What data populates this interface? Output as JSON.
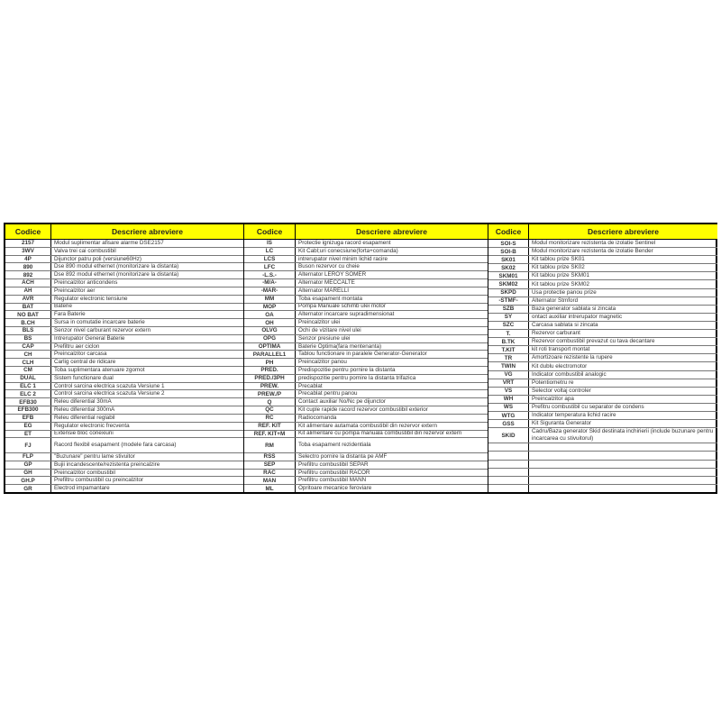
{
  "header": {
    "code": "Codice",
    "description": "Descriere abreviere"
  },
  "colors": {
    "header_bg": "#ffff00",
    "border": "#000000"
  },
  "sections": [
    {
      "rows": [
        {
          "code": "2157",
          "desc": "Modul suplimentar afisare alarme DSE2157"
        },
        {
          "code": "3WV",
          "desc": "Valva trei cai combustibil"
        },
        {
          "code": "4P",
          "desc": "Dijunctor patru poli (versiune60Hz)"
        },
        {
          "code": "890",
          "desc": "Dse 890 modul ethernet (monitorizare la distanta)"
        },
        {
          "code": "892",
          "desc": "Dse 892 modul ethernet (monitorizare la distanta)"
        },
        {
          "code": "ACH",
          "desc": "Preincalzitor anticondens"
        },
        {
          "code": "AH",
          "desc": "Preincalzitor aer"
        },
        {
          "code": "AVR",
          "desc": "Regulator electronic tensiune"
        },
        {
          "code": "BAT",
          "desc": "Baterie"
        },
        {
          "code": "NO BAT",
          "desc": "Fara Baterie"
        },
        {
          "code": "B.CH",
          "desc": "Sursa in comutatie incarcare baterie"
        },
        {
          "code": "BLS",
          "desc": "Senzor nivel carburant rezervor extern"
        },
        {
          "code": "BS",
          "desc": "Intrerupator General Baterie"
        },
        {
          "code": "CAP",
          "desc": "Prefiltru aer ciclon"
        },
        {
          "code": "CH",
          "desc": "Preincalzitor carcasa"
        },
        {
          "code": "CLH",
          "desc": "Carlig central de ridicare"
        },
        {
          "code": "CM",
          "desc": "Toba suplimentara atenuare zgomot"
        },
        {
          "code": "DUAL",
          "desc": "Sistem functionare dual"
        },
        {
          "code": "ELC 1",
          "desc": "Control sarcina electrica  scazuta Versiune 1"
        },
        {
          "code": "ELC 2",
          "desc": "Control sarcina electrica  scazuta Versiune 2"
        },
        {
          "code": "EFB30",
          "desc": "Releu diferential 30mA"
        },
        {
          "code": "EFB300",
          "desc": "Releu diferential 300mA"
        },
        {
          "code": "EFB",
          "desc": "Releu diferential reglabil"
        },
        {
          "code": "EG",
          "desc": "Regulator electronic frecventa"
        },
        {
          "code": "ET",
          "desc": "Extensie bloc conexiuni"
        },
        {
          "code": "FJ",
          "desc": "Racord flexibil esapament (modele fara carcasa)",
          "tall": true
        },
        {
          "code": "FLP",
          "desc": "\"Buzunare\" pentru lame stivuitor"
        },
        {
          "code": "GP",
          "desc": "Bujii incandescente/rezistenta preincalzire"
        },
        {
          "code": "GH",
          "desc": "Preincalzitor combustibil"
        },
        {
          "code": "GH.P",
          "desc": "Prefiltru combustibil cu preincalzitor"
        },
        {
          "code": "GR",
          "desc": "Electrod impamantare"
        }
      ]
    },
    {
      "rows": [
        {
          "code": "IS",
          "desc": "Protectie ignizuga racord esapament"
        },
        {
          "code": "LC",
          "desc": "Kit Cabl;uri conecsiune(forta+comanda)"
        },
        {
          "code": "LCS",
          "desc": "intrerupator nivel minim lichid racire"
        },
        {
          "code": "LFC",
          "desc": "Buson rezervor cu cheie"
        },
        {
          "code": "-L.S.-",
          "desc": "Alternator LEROY SOMER"
        },
        {
          "code": "-M/A-",
          "desc": "Alternator MECCALTE"
        },
        {
          "code": "-MAR-",
          "desc": "Alternator MARELLI"
        },
        {
          "code": "MM",
          "desc": "Toba esapament montata"
        },
        {
          "code": "MOP",
          "desc": "Pompa Manuale schimb ulei motor"
        },
        {
          "code": "OA",
          "desc": "Alternator incarcare supradimensionat"
        },
        {
          "code": "OH",
          "desc": "Preincalzitor ulei"
        },
        {
          "code": "OLVG",
          "desc": "Ochi de vizitare nivel ulei"
        },
        {
          "code": "OPG",
          "desc": "Senzor presiune ulei"
        },
        {
          "code": "OPTIMA",
          "desc": "Baterie Optima(fara mentenanta)"
        },
        {
          "code": "PARALLEL1",
          "desc": "Tablou functionare in paralele Generator-Generator"
        },
        {
          "code": "PH",
          "desc": "Preincalzitor panou"
        },
        {
          "code": "PRED.",
          "desc": "Predispozitie pentru pornire la distanta"
        },
        {
          "code": "PRED./3PH",
          "desc": "predispozitie pentru pornire la distanta trifazica"
        },
        {
          "code": "PREW.",
          "desc": "Precablat"
        },
        {
          "code": "PREW./P",
          "desc": "Precablat pentru panou"
        },
        {
          "code": "Q",
          "desc": "Contact auxiliar No/Nc pe dijunctor"
        },
        {
          "code": "QC",
          "desc": "Kit cuple rapide racord rezervor combustibil exterior"
        },
        {
          "code": "RC",
          "desc": "Radiocomanda"
        },
        {
          "code": "REF. KIT",
          "desc": "Kit alimentare autamata combustibil din rezervor extern"
        },
        {
          "code": "REF. KIT+M",
          "desc": "Kit alimentare cu pompa manuala combustibil din rezervor extern"
        },
        {
          "code": "RM",
          "desc": "Toba esapament rezidentiala",
          "tall": true
        },
        {
          "code": "RSS",
          "desc": "Selectro pornire la distanta pe AMF"
        },
        {
          "code": "SEP",
          "desc": "Prefiltru combustibil SEPAR"
        },
        {
          "code": "RAC",
          "desc": "Prefiltru combustibil RACOR"
        },
        {
          "code": "MAN",
          "desc": "Prefiltru combustibil MANN"
        },
        {
          "code": "ML",
          "desc": "Opritoare mecanice feroviare"
        }
      ]
    },
    {
      "rows": [
        {
          "code": "SOI-S",
          "desc": "Modul monitorizare rezistenta de izolatie Sentinel"
        },
        {
          "code": "SOI-B",
          "desc": "Modul monitorizare rezistenta de izolatie Bender"
        },
        {
          "code": "SK01",
          "desc": "Kit tablou prize SK01"
        },
        {
          "code": "SK02",
          "desc": "Kit tablou prize SK02"
        },
        {
          "code": "SKM01",
          "desc": "Kit tablou prize SKM01"
        },
        {
          "code": "SKM02",
          "desc": "Kit tablou prize SKM02"
        },
        {
          "code": "SKPD",
          "desc": "Usa protectie panou prize"
        },
        {
          "code": "-STMF-",
          "desc": "Alternator Stmford"
        },
        {
          "code": "SZB",
          "desc": "Baza generator sablata si zincata"
        },
        {
          "code": "SY",
          "desc": "ontact auxiliar intrerupator magnetic"
        },
        {
          "code": "SZC",
          "desc": "Carcasa sablata si zincata"
        },
        {
          "code": "T.",
          "desc": "Rezervor carburant"
        },
        {
          "code": "B.TK",
          "desc": "Rezervor combustibil prevazut cu tava decantare"
        },
        {
          "code": "T.KIT",
          "desc": "kit roti transport montat"
        },
        {
          "code": "TR",
          "desc": "Amortizoare rezistente la rupere"
        },
        {
          "code": "TWIN",
          "desc": "Kit dublu electromotor"
        },
        {
          "code": "VG",
          "desc": "Indicator combustibil analogic"
        },
        {
          "code": "VRT",
          "desc": "Potentiometru re"
        },
        {
          "code": "VS",
          "desc": "Selector voltaj controler"
        },
        {
          "code": "WH",
          "desc": "Preincalzitor apa"
        },
        {
          "code": "WS",
          "desc": "Prefitru combustibil cu separator de condens"
        },
        {
          "code": "WTG",
          "desc": "Indicator temperatura lichid racire"
        },
        {
          "code": "GSS",
          "desc": "Kit Siguranta Generator"
        },
        {
          "code": "SKID",
          "desc": "Cadru/Baza generator Skid destinata inchirierii  (include buzunare pentru incarcarea cu stivuitorul)",
          "tall": true
        },
        {
          "code": "",
          "desc": ""
        },
        {
          "code": "",
          "desc": ""
        },
        {
          "code": "",
          "desc": ""
        },
        {
          "code": "",
          "desc": ""
        },
        {
          "code": "",
          "desc": ""
        },
        {
          "code": "",
          "desc": ""
        }
      ]
    }
  ]
}
